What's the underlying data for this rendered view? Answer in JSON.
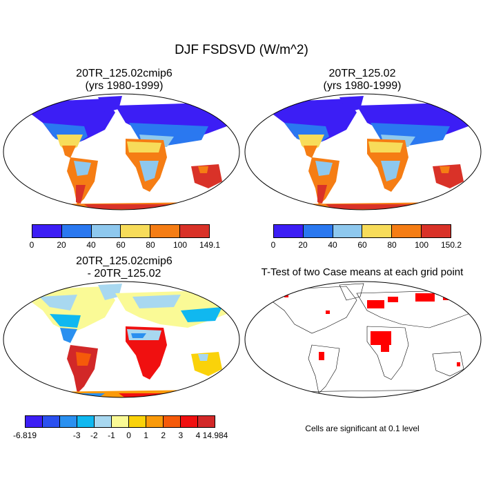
{
  "title": "DJF FSDSVD (W/m^2)",
  "panels": [
    {
      "line1": "20TR_125.02cmip6",
      "line2": "(yrs 1980-1999)"
    },
    {
      "line1": "20TR_125.02",
      "line2": "(yrs 1980-1999)"
    },
    {
      "line1": "20TR_125.02cmip6",
      "line2": "- 20TR_125.02"
    },
    {
      "line1": "T-Test of two Case means at each grid point",
      "line2": ""
    }
  ],
  "colorbar1": {
    "colors": [
      "#3c1ef5",
      "#2a78f0",
      "#8ec8ee",
      "#f7dc5a",
      "#f57d14",
      "#d93228"
    ],
    "labels": [
      "0",
      "20",
      "40",
      "60",
      "80",
      "100",
      "149.1"
    ]
  },
  "colorbar2": {
    "colors": [
      "#3c1ef5",
      "#2a78f0",
      "#8ec8ee",
      "#f7dc5a",
      "#f57d14",
      "#d93228"
    ],
    "labels": [
      "0",
      "20",
      "40",
      "60",
      "80",
      "100",
      "150.2"
    ]
  },
  "colorbar3": {
    "colors": [
      "#3c1ef5",
      "#2a50f0",
      "#2a90f0",
      "#10b8f0",
      "#a8d8f0",
      "#fafa96",
      "#fad20a",
      "#fa9a0a",
      "#f55a0a",
      "#f01010",
      "#d22828"
    ],
    "labels": [
      "-6.819",
      "-3",
      "-2",
      "-1",
      "0",
      "1",
      "2",
      "3",
      "4",
      "14.984"
    ]
  },
  "significance_note": "Cells are significant at 0.1 level"
}
